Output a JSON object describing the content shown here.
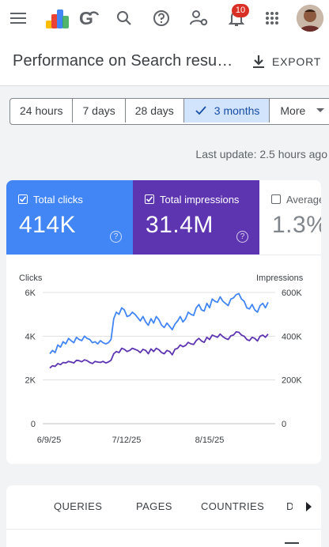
{
  "app": {
    "logo_text": "G",
    "notification_count": "10"
  },
  "header": {
    "title": "Performance on Search resu…",
    "export_label": "EXPORT"
  },
  "filters": {
    "chips": [
      "24 hours",
      "7 days",
      "28 days",
      "3 months",
      "More"
    ],
    "selected": "3 months"
  },
  "last_update": "Last update: 2.5 hours ago",
  "metrics": {
    "clicks": {
      "label": "Total clicks",
      "value": "414K",
      "color": "#4285f4"
    },
    "impressions": {
      "label": "Total impressions",
      "value": "31.4M",
      "color": "#5e35b1"
    },
    "ctr": {
      "label": "Average",
      "value": "1.3%"
    }
  },
  "chart_data": {
    "type": "line",
    "y_left_label": "Clicks",
    "y_right_label": "Impressions",
    "y_left_ticks": [
      "6K",
      "4K",
      "2K",
      "0"
    ],
    "y_right_ticks": [
      "600K",
      "400K",
      "200K",
      "0"
    ],
    "x_ticks": [
      "6/9/25",
      "7/12/25",
      "8/15/25"
    ],
    "ylim_left": [
      0,
      6000
    ],
    "ylim_right": [
      0,
      600000
    ],
    "series": [
      {
        "name": "Clicks",
        "color": "#4285f4",
        "axis": "left",
        "values": [
          3200,
          3350,
          3250,
          3600,
          3500,
          3750,
          3650,
          3900,
          3800,
          3700,
          3950,
          3850,
          3800,
          4000,
          3900,
          3850,
          3700,
          3750,
          3650,
          3800,
          3700,
          3650,
          3700,
          3850,
          4800,
          5100,
          5000,
          5300,
          5200,
          4900,
          4950,
          5100,
          5000,
          4850,
          4700,
          4900,
          4650,
          4500,
          4800,
          4600,
          4900,
          4750,
          4500,
          4400,
          4600,
          4450,
          4300,
          4550,
          4700,
          4900,
          4650,
          4800,
          5100,
          5000,
          4950,
          5300,
          5450,
          5200,
          5150,
          5500,
          5300,
          5700,
          5600,
          5550,
          5800,
          5600,
          5500,
          5400,
          5700,
          5750,
          5900,
          5950,
          5700,
          5600,
          5300,
          5250,
          5450,
          5200,
          5100,
          5400,
          5500,
          5300,
          5550
        ]
      },
      {
        "name": "Impressions",
        "color": "#5e35b1",
        "axis": "right",
        "values": [
          255000,
          265000,
          262000,
          275000,
          270000,
          280000,
          278000,
          285000,
          282000,
          278000,
          290000,
          288000,
          283000,
          292000,
          288000,
          280000,
          275000,
          285000,
          282000,
          280000,
          285000,
          278000,
          282000,
          290000,
          320000,
          330000,
          325000,
          345000,
          340000,
          330000,
          335000,
          345000,
          340000,
          335000,
          325000,
          340000,
          335000,
          320000,
          342000,
          330000,
          345000,
          338000,
          325000,
          320000,
          335000,
          330000,
          315000,
          340000,
          345000,
          360000,
          352000,
          358000,
          372000,
          365000,
          362000,
          380000,
          390000,
          378000,
          372000,
          395000,
          385000,
          405000,
          400000,
          395000,
          410000,
          398000,
          390000,
          385000,
          402000,
          405000,
          420000,
          418000,
          405000,
          400000,
          385000,
          380000,
          395000,
          390000,
          378000,
          400000,
          405000,
          395000,
          410000
        ]
      }
    ],
    "grid": true
  },
  "tabs": [
    "QUERIES",
    "PAGES",
    "COUNTRIES",
    "D"
  ]
}
